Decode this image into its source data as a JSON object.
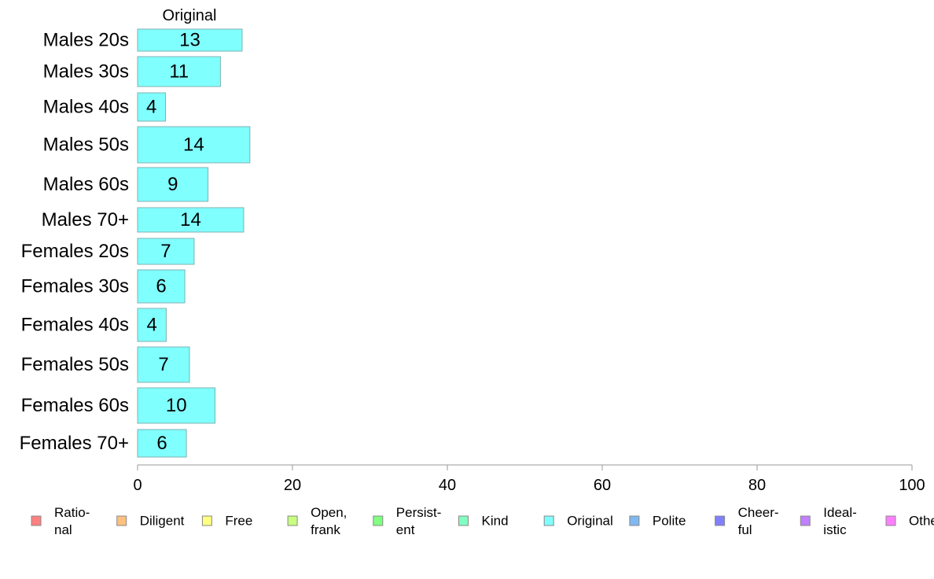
{
  "chart_data": {
    "type": "bar",
    "orientation": "horizontal",
    "title": "Original",
    "categories": [
      "Males 20s",
      "Males 30s",
      "Males 40s",
      "Males 50s",
      "Males 60s",
      "Males 70+",
      "Females 20s",
      "Females 30s",
      "Females 40s",
      "Females 50s",
      "Females 60s",
      "Females 70+"
    ],
    "series": [
      {
        "name": "Original",
        "color": "#80ffff",
        "values": [
          13.5,
          10.7,
          3.6,
          14.5,
          9.1,
          13.7,
          7.3,
          6.1,
          3.7,
          6.7,
          10.0,
          6.3
        ],
        "labels": [
          "13",
          "11",
          "4",
          "14",
          "9",
          "14",
          "7",
          "6",
          "4",
          "7",
          "10",
          "6"
        ]
      }
    ],
    "xlim": [
      0,
      100
    ],
    "xticks": [
      "0",
      "20",
      "40",
      "60",
      "80",
      "100"
    ],
    "grid": false,
    "legend": {
      "position": "bottom",
      "entries": [
        {
          "label": "Ratio-\nnal",
          "color": "#ff8080"
        },
        {
          "label": "Diligent",
          "color": "#ffc080"
        },
        {
          "label": "Free",
          "color": "#ffff80"
        },
        {
          "label": "Open,\nfrank",
          "color": "#c8ff80"
        },
        {
          "label": "Persist-\nent",
          "color": "#80ff80"
        },
        {
          "label": "Kind",
          "color": "#80ffc0"
        },
        {
          "label": "Original",
          "color": "#80ffff"
        },
        {
          "label": "Polite",
          "color": "#80b8f0"
        },
        {
          "label": "Cheer-\nful",
          "color": "#8080ff"
        },
        {
          "label": "Ideal-\nistic",
          "color": "#c080ff"
        },
        {
          "label": "Other",
          "color": "#ff80ff"
        }
      ]
    }
  }
}
